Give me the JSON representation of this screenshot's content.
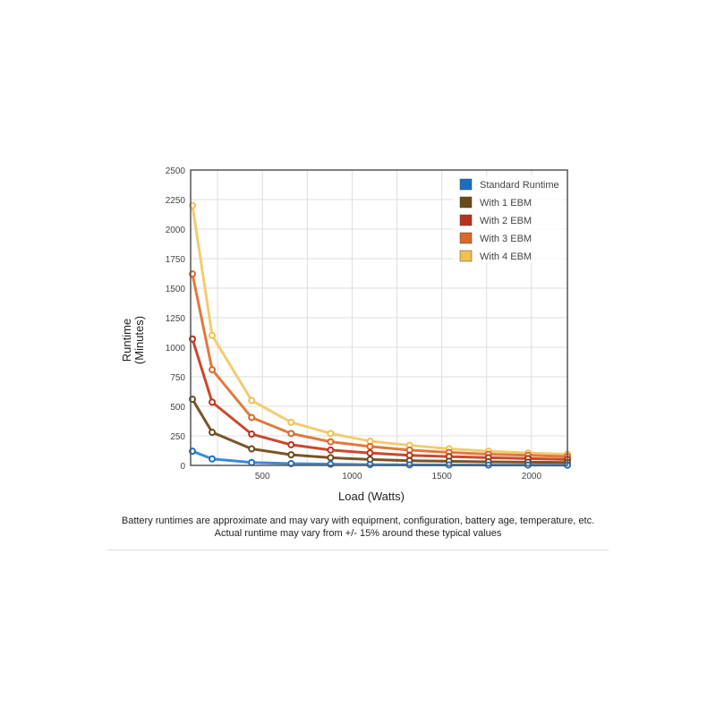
{
  "chart_data": {
    "type": "line",
    "title": "",
    "xlabel": "Load (Watts)",
    "ylabel": [
      "Runtime",
      "(Minutes)"
    ],
    "xlim": [
      100,
      2200
    ],
    "ylim": [
      0,
      2500
    ],
    "x_ticks": [
      500,
      1000,
      1500,
      2000
    ],
    "y_ticks": [
      0,
      250,
      500,
      750,
      1000,
      1250,
      1500,
      1750,
      2000,
      2250,
      2500
    ],
    "grid": true,
    "legend_position": "top-right",
    "x": [
      110,
      220,
      440,
      660,
      880,
      1100,
      1320,
      1540,
      1760,
      1980,
      2200
    ],
    "series": [
      {
        "name": "Standard Runtime",
        "color": "#1a6fc4",
        "line_color": "#3b8ad6",
        "values": [
          120,
          55,
          25,
          15,
          10,
          7,
          5,
          4,
          3,
          3,
          2
        ]
      },
      {
        "name": "With 1 EBM",
        "color": "#6b4a18",
        "line_color": "#7a5526",
        "values": [
          560,
          280,
          140,
          90,
          65,
          50,
          40,
          35,
          30,
          27,
          25
        ]
      },
      {
        "name": "With 2 EBM",
        "color": "#b8321c",
        "line_color": "#c9492f",
        "values": [
          1070,
          535,
          265,
          175,
          130,
          105,
          85,
          75,
          65,
          58,
          50
        ]
      },
      {
        "name": "With 3 EBM",
        "color": "#d9682a",
        "line_color": "#e07a3e",
        "values": [
          1620,
          810,
          405,
          270,
          200,
          160,
          130,
          110,
          95,
          85,
          75
        ]
      },
      {
        "name": "With 4 EBM",
        "color": "#f0c050",
        "line_color": "#f2cc70",
        "values": [
          2200,
          1100,
          550,
          365,
          270,
          205,
          170,
          140,
          120,
          105,
          95
        ]
      }
    ]
  },
  "notes": {
    "line1": "Battery runtimes are approximate and may vary with equipment, configuration, battery age, temperature, etc.",
    "line2": "Actual runtime may vary from +/- 15% around these typical values"
  }
}
